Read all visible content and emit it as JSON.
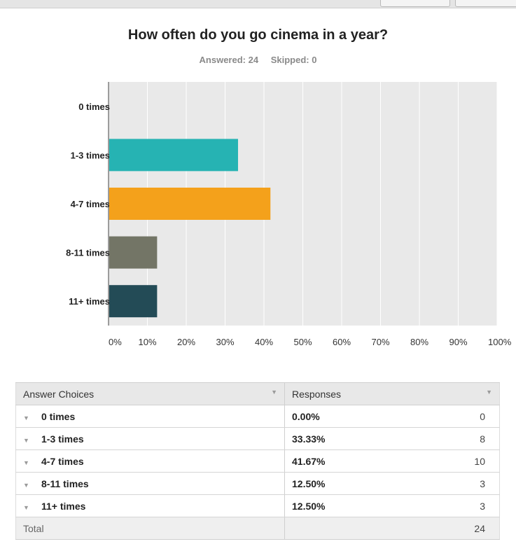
{
  "survey": {
    "title": "How often do you go cinema in a year?",
    "answered": "Answered: 24",
    "skipped": "Skipped: 0"
  },
  "chart_data": {
    "type": "bar",
    "orientation": "horizontal",
    "categories": [
      "0 times",
      "1-3 times",
      "4-7 times",
      "8-11 times",
      "11+ times"
    ],
    "values": [
      0,
      33.33,
      41.67,
      12.5,
      12.5
    ],
    "colors": [
      "#26b3b3",
      "#26b3b3",
      "#f4a11b",
      "#737566",
      "#234b56"
    ],
    "xlim": [
      0,
      100
    ],
    "xticks": [
      "0%",
      "10%",
      "20%",
      "30%",
      "40%",
      "50%",
      "60%",
      "70%",
      "80%",
      "90%",
      "100%"
    ],
    "grid": true,
    "background": "#e9e9e9"
  },
  "table": {
    "headers": [
      "Answer Choices",
      "Responses"
    ],
    "rows": [
      {
        "choice": "0 times",
        "pct": "0.00%",
        "count": "0"
      },
      {
        "choice": "1-3 times",
        "pct": "33.33%",
        "count": "8"
      },
      {
        "choice": "4-7 times",
        "pct": "41.67%",
        "count": "10"
      },
      {
        "choice": "8-11 times",
        "pct": "12.50%",
        "count": "3"
      },
      {
        "choice": "11+ times",
        "pct": "12.50%",
        "count": "3"
      }
    ],
    "total_label": "Total",
    "total_count": "24"
  }
}
